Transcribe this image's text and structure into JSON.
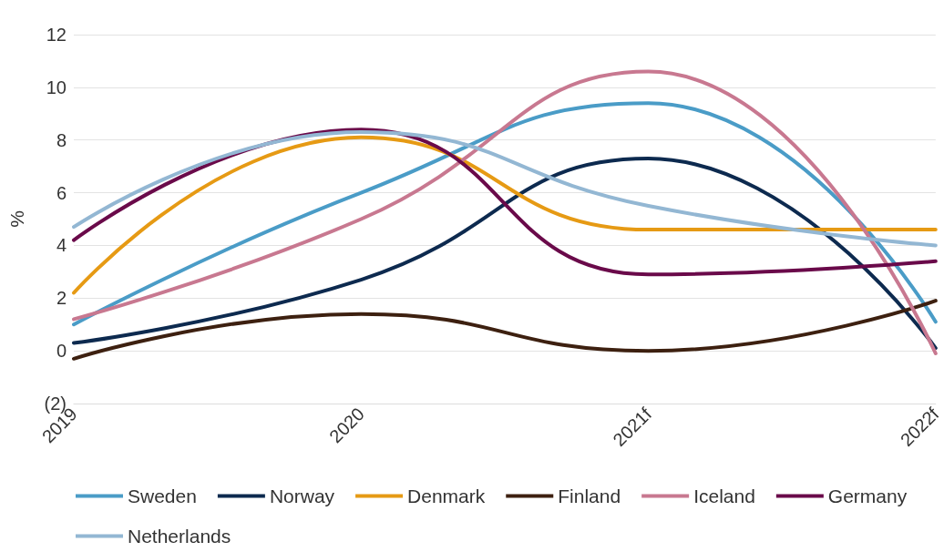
{
  "chart_data": {
    "type": "line",
    "ylabel": "%",
    "categories": [
      "2019",
      "2020",
      "2021f",
      "2022f"
    ],
    "series": [
      {
        "name": "Sweden",
        "color": "#4a9cc7",
        "values": [
          1.0,
          6.0,
          9.4,
          1.1
        ]
      },
      {
        "name": "Norway",
        "color": "#0d2a4f",
        "values": [
          0.3,
          2.7,
          7.3,
          0.1
        ]
      },
      {
        "name": "Denmark",
        "color": "#e69a14",
        "values": [
          2.2,
          8.1,
          4.6,
          4.6
        ]
      },
      {
        "name": "Finland",
        "color": "#3d2010",
        "values": [
          -0.3,
          1.4,
          0.0,
          1.9
        ]
      },
      {
        "name": "Iceland",
        "color": "#c87890",
        "values": [
          1.2,
          5.0,
          10.6,
          -0.1
        ]
      },
      {
        "name": "Germany",
        "color": "#6a0a4a",
        "values": [
          4.2,
          8.4,
          2.9,
          3.4
        ]
      },
      {
        "name": "Netherlands",
        "color": "#93b7d3",
        "values": [
          4.7,
          8.3,
          5.5,
          4.0
        ]
      }
    ],
    "ylim": [
      -2,
      12
    ],
    "yticks": [
      {
        "value": -2,
        "label": "(2)"
      },
      0,
      2,
      4,
      6,
      8,
      10,
      12
    ],
    "grid": "y",
    "legend": "bottom",
    "marker": "none",
    "line_style": "solid"
  }
}
